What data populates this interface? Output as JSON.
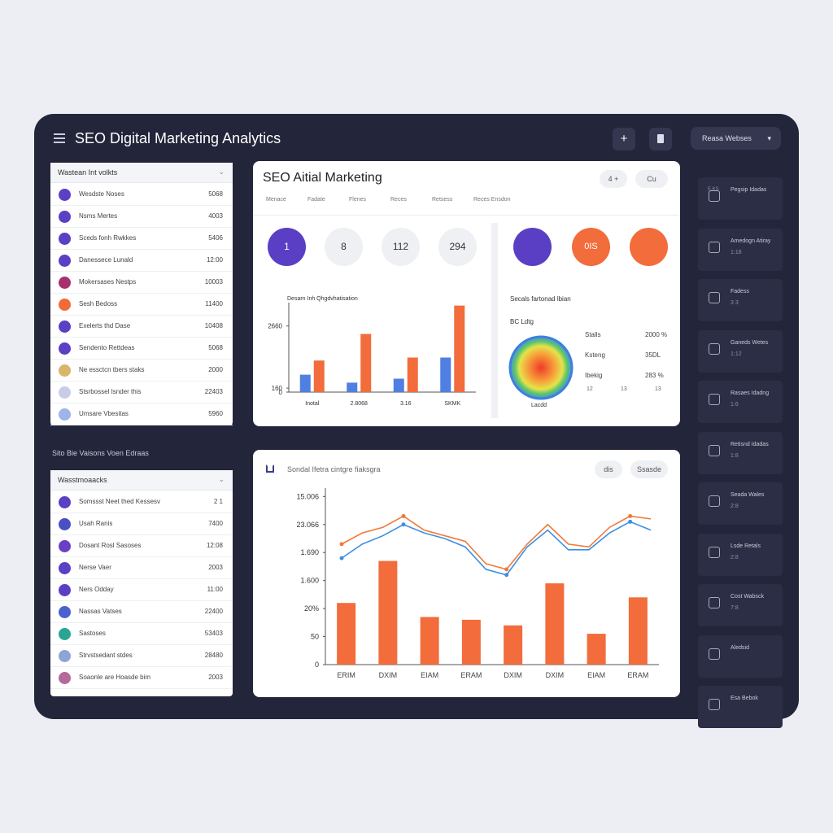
{
  "header": {
    "title": "SEO Digital Marketing Analytics",
    "add_button": "+",
    "dropdown": "Reasa Webses"
  },
  "left_top": {
    "title": "Wastean Int volkts",
    "rows": [
      {
        "label": "Wesdste Noses",
        "value": "5068",
        "color": "#5b3fc4"
      },
      {
        "label": "Nsms Mertes",
        "value": "4003",
        "color": "#5b3fc4"
      },
      {
        "label": "Sceds fonh Rwkkes",
        "value": "5406",
        "color": "#5b3fc4"
      },
      {
        "label": "Danessece Lunald",
        "value": "12:00",
        "color": "#5b3fc4"
      },
      {
        "label": "Mokersases Nestps",
        "value": "10003",
        "color": "#a8306c"
      },
      {
        "label": "Sesh Bedoss",
        "value": "11400",
        "color": "#f06a3a"
      },
      {
        "label": "Exelerts thd Dase",
        "value": "10408",
        "color": "#5b3fc4"
      },
      {
        "label": "Sendento Rettdeas",
        "value": "5068",
        "color": "#5b3fc4"
      },
      {
        "label": "Ne essctcn tbers staks",
        "value": "2000",
        "color": "#d9b66a"
      },
      {
        "label": "Stsrbossel Isnder this",
        "value": "22403",
        "color": "#c7cde8"
      },
      {
        "label": "Umsare Vbesitas",
        "value": "5960",
        "color": "#9fb4e8"
      }
    ]
  },
  "left_bottom": {
    "heading": "Sito Bie Vaisons Voen Edraas",
    "title": "Wasstmoaacks",
    "rows": [
      {
        "label": "Somssst Neet thed Kessesv",
        "value": "2 1",
        "color": "#5b3fc4"
      },
      {
        "label": "Usah Ranis",
        "value": "7400",
        "color": "#4a4fc4"
      },
      {
        "label": "Dosant Rosl Sasoses",
        "value": "12:08",
        "color": "#6a3fc4"
      },
      {
        "label": "Nerse Vaer",
        "value": "2003",
        "color": "#5b3fc4"
      },
      {
        "label": "Ners Odday",
        "value": "11:00",
        "color": "#5b3fc4"
      },
      {
        "label": "Nassas Vatses",
        "value": "22400",
        "color": "#4a62d0"
      },
      {
        "label": "Sastoses",
        "value": "53403",
        "color": "#2aa594"
      },
      {
        "label": "Strvstsedant stdes",
        "value": "28480",
        "color": "#8ea4d8"
      },
      {
        "label": "Soaonle are Hoasde bim",
        "value": "2003",
        "color": "#b46a9a"
      }
    ]
  },
  "main_panel": {
    "title": "SEO Aitial Marketing",
    "buttons": [
      "4 +",
      "Cu"
    ],
    "tabs": [
      "Menace",
      "Fadate",
      "Flenes",
      "Reces",
      "Retsess",
      "Reces Ensdon"
    ],
    "circles": [
      "1",
      "8",
      "112",
      "294"
    ],
    "icon_circle_text": "0IS",
    "donut": {
      "title": "Secals fartonad lbian",
      "subtitle": "BC Ldtg",
      "caption": "Lacdd",
      "legend": [
        {
          "label": "Stalls",
          "value": "2000 %"
        },
        {
          "label": "Ksteng",
          "value": "35DL"
        },
        {
          "label": "Ibekig",
          "value": "283 %"
        }
      ],
      "footer": [
        "12",
        "13",
        "13"
      ]
    }
  },
  "chart_data": [
    {
      "type": "bar",
      "title": "Desarn Inh Qhgdvhatisation",
      "categories": [
        "Inotal",
        "2.8068",
        "3.16",
        "SKMK"
      ],
      "series": [
        {
          "color": "#4f7fe0",
          "values": [
            700,
            380,
            540,
            1390
          ]
        },
        {
          "color": "#f26c3c",
          "values": [
            1270,
            2340,
            1390,
            3480
          ]
        }
      ],
      "ylim": [
        0,
        3600
      ],
      "yticks": [
        0,
        160,
        2660
      ]
    },
    {
      "type": "combo",
      "title": "Sondal Ifetra cintgre fiaksgra",
      "buttons": [
        "dis",
        "Ssasde"
      ],
      "categories": [
        "ERIM",
        "DXIM",
        "EIAM",
        "ERAM",
        "DXIM",
        "DXIM",
        "EIAM",
        "ERAM"
      ],
      "bars": {
        "color": "#f26c3c",
        "values": [
          2.2,
          3.7,
          1.7,
          1.6,
          1.4,
          2.9,
          1.1,
          2.4
        ]
      },
      "lines": [
        {
          "color": "#f07a3a",
          "values": [
            4.3,
            4.7,
            4.9,
            5.3,
            4.8,
            4.6,
            4.4,
            3.6,
            3.4,
            4.3,
            5.0,
            4.3,
            4.2,
            4.9,
            5.3,
            5.2
          ]
        },
        {
          "color": "#3f8fe0",
          "values": [
            3.8,
            4.3,
            4.6,
            5.0,
            4.7,
            4.5,
            4.2,
            3.4,
            3.2,
            4.2,
            4.8,
            4.1,
            4.1,
            4.7,
            5.1,
            4.8
          ]
        }
      ],
      "ylim": [
        0,
        6.3
      ],
      "yticks": [
        {
          "value": 0,
          "label": "0"
        },
        {
          "value": 1,
          "label": "50"
        },
        {
          "value": 2,
          "label": "20%"
        },
        {
          "value": 3,
          "label": "1.600"
        },
        {
          "value": 4,
          "label": "1.690"
        },
        {
          "value": 5,
          "label": "23.066"
        },
        {
          "value": 6,
          "label": "15.006"
        }
      ]
    }
  ],
  "sidebar": [
    {
      "label": "Pegsip Idadas",
      "tag": "E.KS"
    },
    {
      "label": "Amedogn Atiray",
      "sub": "1:18"
    },
    {
      "label": "Fadess",
      "sub": "3 3"
    },
    {
      "label": "Ganeds Wetes",
      "sub": "1:12"
    },
    {
      "label": "Rasaes Idadng",
      "sub": "1:6"
    },
    {
      "label": "Retisnd Idadas",
      "sub": "1:8"
    },
    {
      "label": "Seada Wales",
      "sub": "2:8"
    },
    {
      "label": "Lsde Retals",
      "sub": "2:8"
    },
    {
      "label": "Cost Wabsck",
      "sub": "7:8"
    },
    {
      "label": "Aledsid"
    },
    {
      "label": "Esa Bebok"
    }
  ]
}
